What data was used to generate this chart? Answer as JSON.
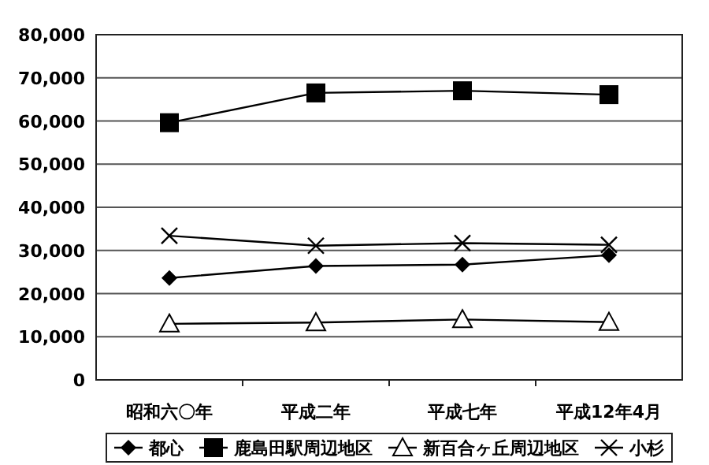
{
  "chart_data": {
    "type": "line",
    "categories": [
      "昭和六〇年",
      "平成二年",
      "平成七年",
      "平成12年4月"
    ],
    "series": [
      {
        "name": "都心",
        "color": "#000000",
        "marker": "diamond",
        "values": [
          23600,
          26400,
          26700,
          28900
        ]
      },
      {
        "name": "鹿島田駅周辺地区",
        "color": "#000000",
        "marker": "square",
        "values": [
          59600,
          66500,
          67000,
          66100
        ]
      },
      {
        "name": "新百合ヶ丘周辺地区",
        "color": "#000000",
        "marker": "triangle",
        "values": [
          13000,
          13300,
          14000,
          13400
        ]
      },
      {
        "name": "小杉",
        "color": "#000000",
        "marker": "cross",
        "values": [
          33400,
          31100,
          31700,
          31300
        ]
      }
    ],
    "ylim": [
      0,
      80000
    ],
    "yticks": [
      {
        "value": 0,
        "label": "0"
      },
      {
        "value": 10000,
        "label": "10,000"
      },
      {
        "value": 20000,
        "label": "20,000"
      },
      {
        "value": 30000,
        "label": "30,000"
      },
      {
        "value": 40000,
        "label": "40,000"
      },
      {
        "value": 50000,
        "label": "50,000"
      },
      {
        "value": 60000,
        "label": "60,000"
      },
      {
        "value": 70000,
        "label": "70,000"
      },
      {
        "value": 80000,
        "label": "80,000"
      }
    ],
    "grid": "y",
    "legend": "bottom"
  }
}
